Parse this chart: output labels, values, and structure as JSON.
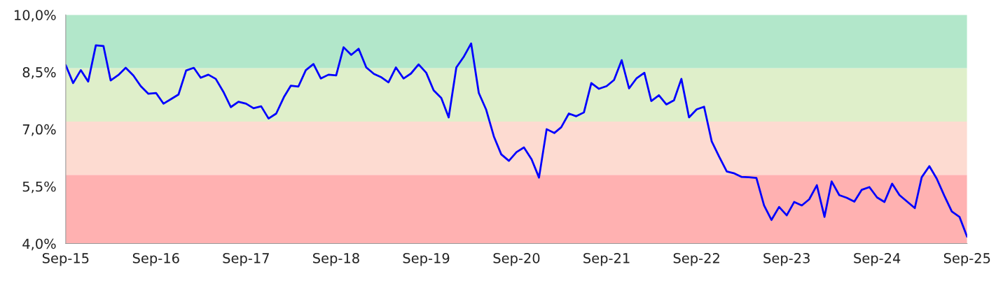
{
  "chart_data": {
    "type": "line",
    "x": [
      "2015-09",
      "2015-10",
      "2015-11",
      "2015-12",
      "2016-01",
      "2016-02",
      "2016-03",
      "2016-04",
      "2016-05",
      "2016-06",
      "2016-07",
      "2016-08",
      "2016-09",
      "2016-10",
      "2016-11",
      "2016-12",
      "2017-01",
      "2017-02",
      "2017-03",
      "2017-04",
      "2017-05",
      "2017-06",
      "2017-07",
      "2017-08",
      "2017-09",
      "2017-10",
      "2017-11",
      "2017-12",
      "2018-01",
      "2018-02",
      "2018-03",
      "2018-04",
      "2018-05",
      "2018-06",
      "2018-07",
      "2018-08",
      "2018-09",
      "2018-10",
      "2018-11",
      "2018-12",
      "2019-01",
      "2019-02",
      "2019-03",
      "2019-04",
      "2019-05",
      "2019-06",
      "2019-07",
      "2019-08",
      "2019-09",
      "2019-10",
      "2019-11",
      "2019-12",
      "2020-01",
      "2020-02",
      "2020-03",
      "2020-04",
      "2020-05",
      "2020-06",
      "2020-07",
      "2020-08",
      "2020-09",
      "2020-10",
      "2020-11",
      "2020-12",
      "2021-01",
      "2021-02",
      "2021-03",
      "2021-04",
      "2021-05",
      "2021-06",
      "2021-07",
      "2021-08",
      "2021-09",
      "2021-10",
      "2021-11",
      "2021-12",
      "2022-01",
      "2022-02",
      "2022-03",
      "2022-04",
      "2022-05",
      "2022-06",
      "2022-07",
      "2022-08",
      "2022-09",
      "2022-10",
      "2022-11",
      "2022-12",
      "2023-01",
      "2023-02",
      "2023-03",
      "2023-04",
      "2023-05",
      "2023-06",
      "2023-07",
      "2023-08",
      "2023-09",
      "2023-10",
      "2023-11",
      "2023-12",
      "2024-01",
      "2024-02",
      "2024-03",
      "2024-04",
      "2024-05",
      "2024-06",
      "2024-07",
      "2024-08",
      "2024-09",
      "2024-10",
      "2024-11",
      "2024-12",
      "2025-01",
      "2025-02",
      "2025-03",
      "2025-04",
      "2025-05",
      "2025-06",
      "2025-07",
      "2025-08",
      "2025-09"
    ],
    "series": [
      {
        "color": "#0000ff",
        "values": [
          8.68,
          8.21,
          8.55,
          8.25,
          9.2,
          9.18,
          8.28,
          8.42,
          8.61,
          8.41,
          8.13,
          7.93,
          7.95,
          7.67,
          7.79,
          7.91,
          8.54,
          8.61,
          8.35,
          8.43,
          8.32,
          7.98,
          7.58,
          7.72,
          7.67,
          7.55,
          7.6,
          7.28,
          7.41,
          7.84,
          8.14,
          8.12,
          8.55,
          8.71,
          8.33,
          8.43,
          8.41,
          9.15,
          8.95,
          9.11,
          8.62,
          8.45,
          8.37,
          8.23,
          8.62,
          8.33,
          8.46,
          8.7,
          8.48,
          8.02,
          7.82,
          7.31,
          8.62,
          8.91,
          9.25,
          7.95,
          7.51,
          6.81,
          6.34,
          6.17,
          6.4,
          6.52,
          6.21,
          5.73,
          7.0,
          6.9,
          7.05,
          7.41,
          7.34,
          7.44,
          8.21,
          8.06,
          8.13,
          8.29,
          8.81,
          8.07,
          8.34,
          8.48,
          7.74,
          7.89,
          7.65,
          7.76,
          8.32,
          7.31,
          7.52,
          7.59,
          6.68,
          6.28,
          5.89,
          5.84,
          5.75,
          5.74,
          5.72,
          5.0,
          4.62,
          4.96,
          4.74,
          5.09,
          5.0,
          5.16,
          5.53,
          4.7,
          5.63,
          5.27,
          5.2,
          5.1,
          5.41,
          5.48,
          5.21,
          5.09,
          5.57,
          5.27,
          5.1,
          4.93,
          5.74,
          6.03,
          5.7,
          5.25,
          4.84,
          4.7,
          4.18
        ]
      }
    ],
    "xlim": [
      "2015-09",
      "2025-09"
    ],
    "xticks": [
      {
        "value": "2015-09",
        "label": "Sep-15"
      },
      {
        "value": "2016-09",
        "label": "Sep-16"
      },
      {
        "value": "2017-09",
        "label": "Sep-17"
      },
      {
        "value": "2018-09",
        "label": "Sep-18"
      },
      {
        "value": "2019-09",
        "label": "Sep-19"
      },
      {
        "value": "2020-09",
        "label": "Sep-20"
      },
      {
        "value": "2021-09",
        "label": "Sep-21"
      },
      {
        "value": "2022-09",
        "label": "Sep-22"
      },
      {
        "value": "2023-09",
        "label": "Sep-23"
      },
      {
        "value": "2024-09",
        "label": "Sep-24"
      },
      {
        "value": "2025-09",
        "label": "Sep-25"
      }
    ],
    "ylim": [
      4.0,
      10.0
    ],
    "yticks": [
      {
        "value": 4.0,
        "label": "4,0%"
      },
      {
        "value": 5.5,
        "label": "5,5%"
      },
      {
        "value": 7.0,
        "label": "7,0%"
      },
      {
        "value": 8.5,
        "label": "8,5%"
      },
      {
        "value": 10.0,
        "label": "10,0%"
      }
    ],
    "bands": [
      {
        "axis": "y",
        "from": 4.0,
        "to": 5.8,
        "color": "#ffb1b1"
      },
      {
        "axis": "y",
        "from": 5.8,
        "to": 7.2,
        "color": "#fddbd1"
      },
      {
        "axis": "y",
        "from": 7.2,
        "to": 8.6,
        "color": "#dfefca"
      },
      {
        "axis": "y",
        "from": 8.6,
        "to": 10.0,
        "color": "#b2e7ca"
      }
    ],
    "grid": false,
    "line_style": "solid",
    "marker": "none"
  }
}
